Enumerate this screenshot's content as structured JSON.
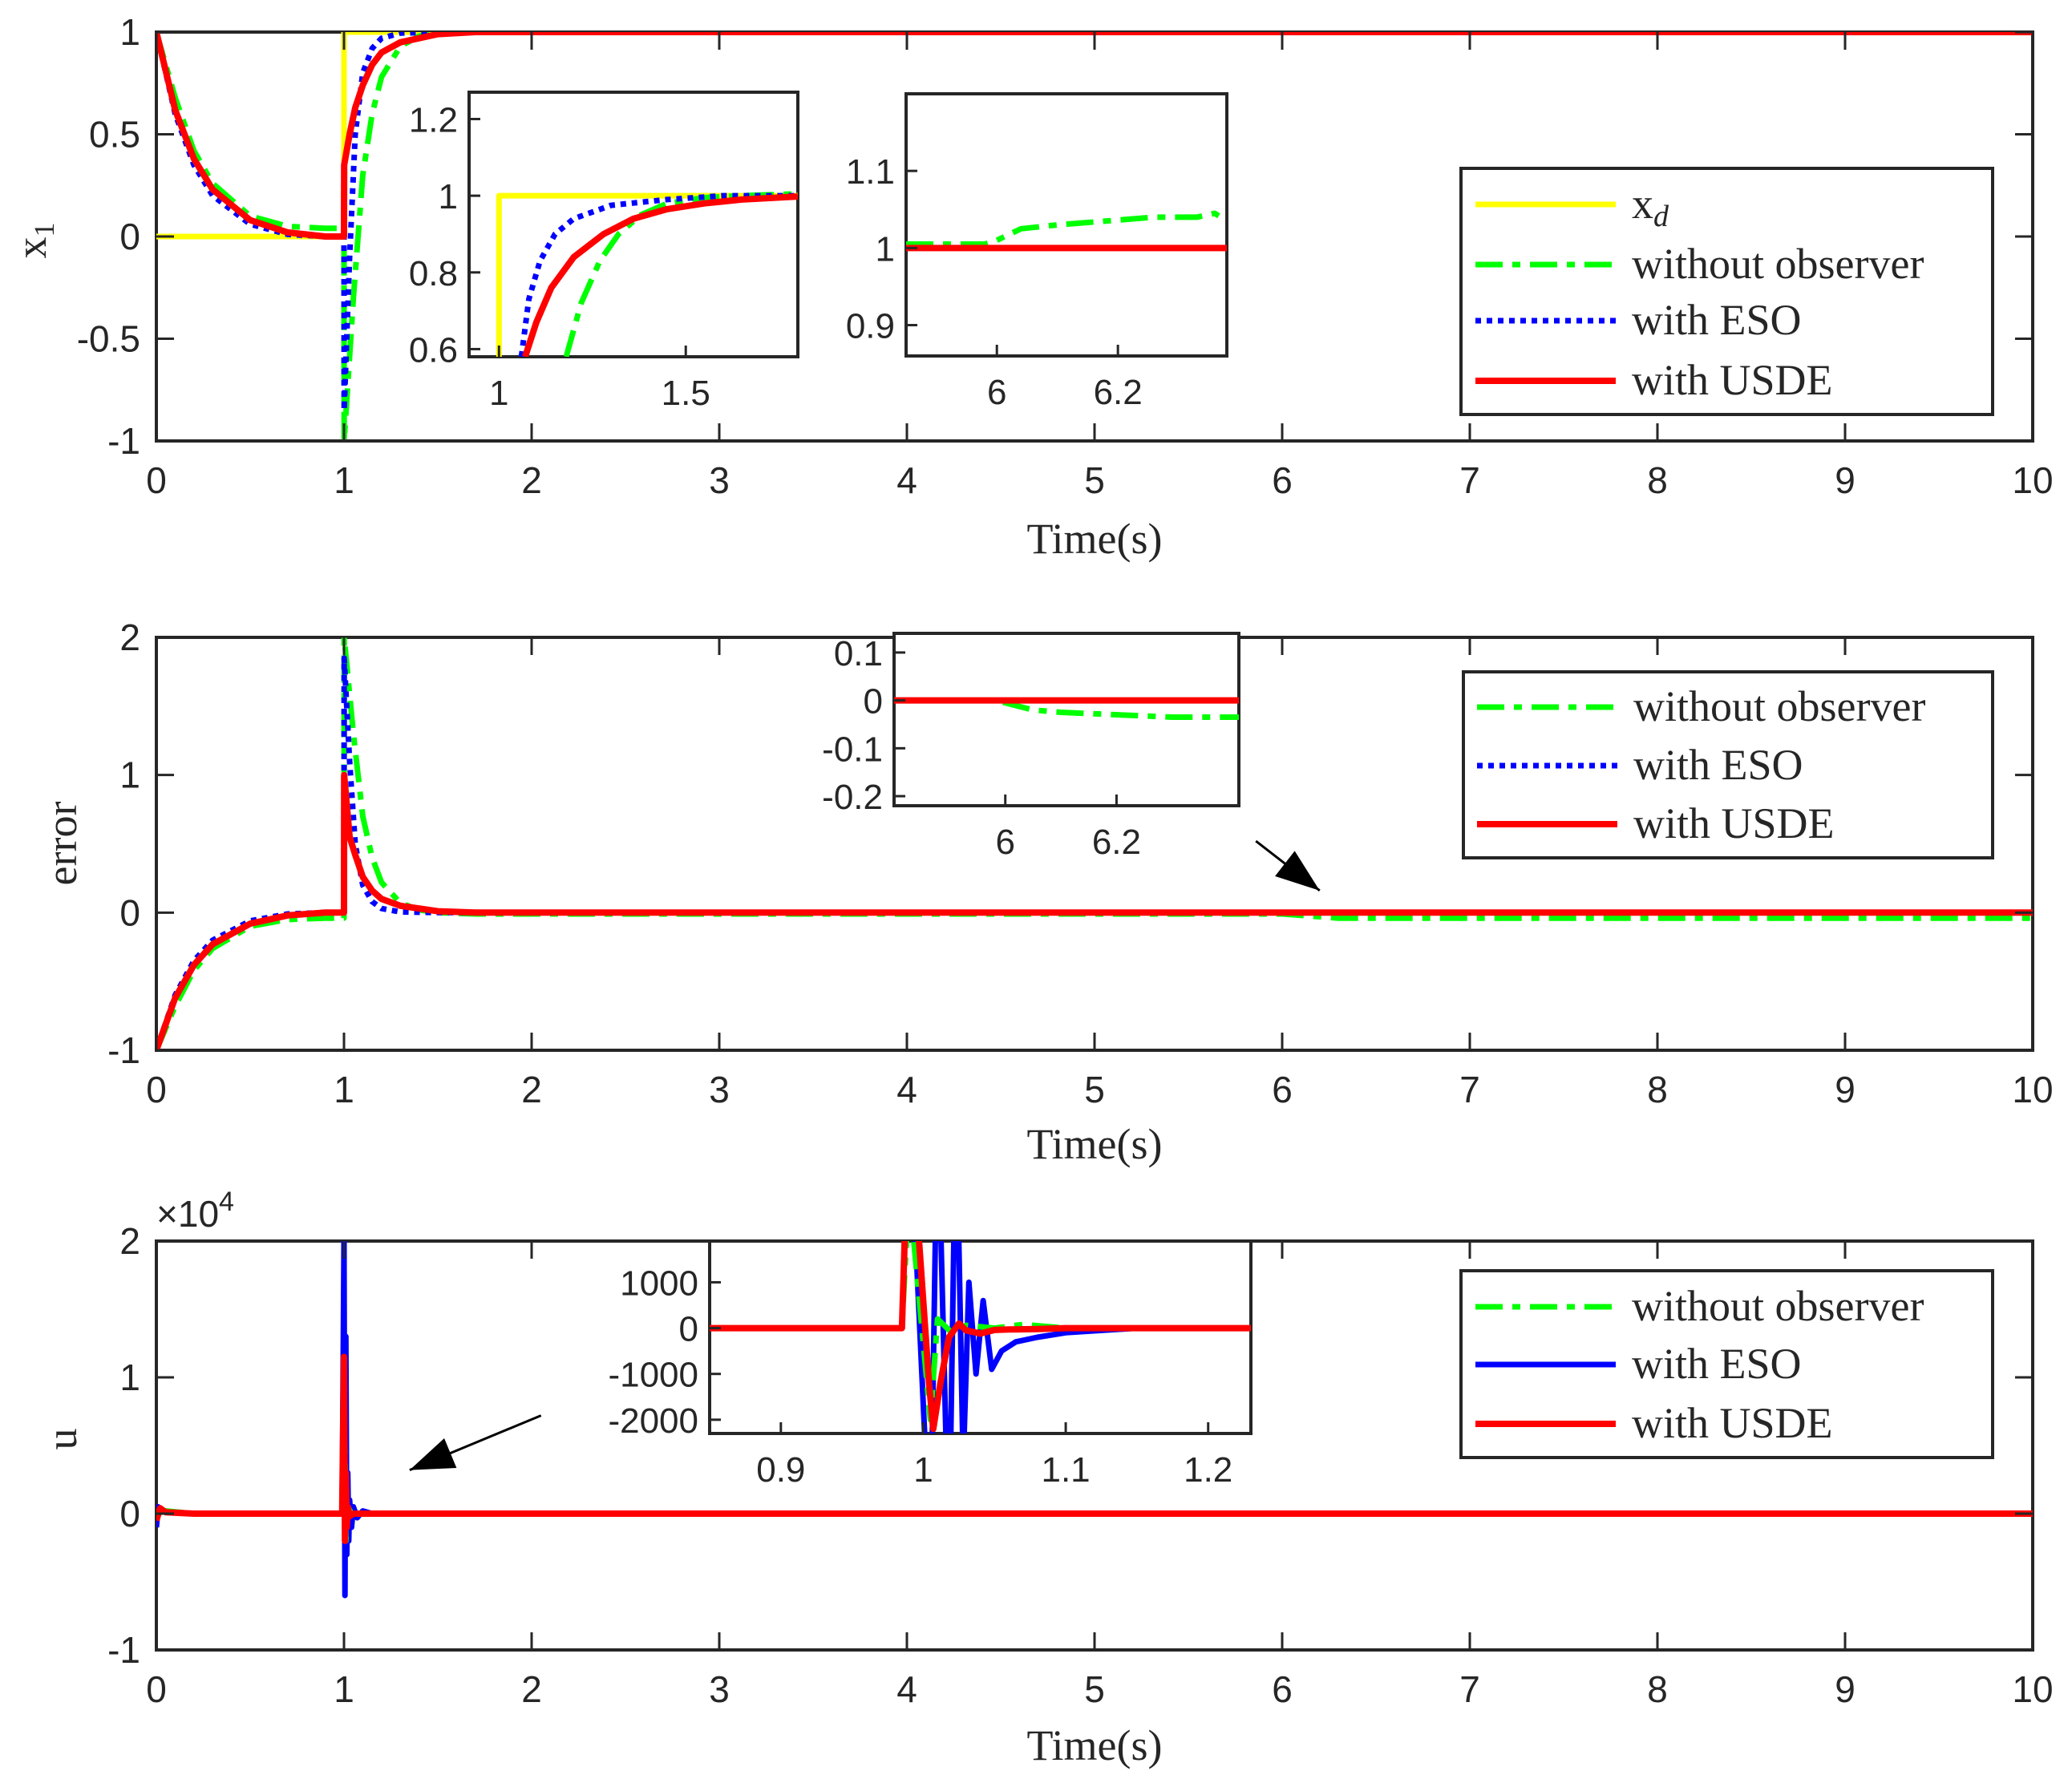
{
  "chart_data": [
    {
      "type": "line",
      "ylabel": "x",
      "ylabel_sub": "1",
      "xlabel": "Time(s)",
      "xlim": [
        0,
        10
      ],
      "ylim": [
        -1,
        1
      ],
      "xticks": [
        "0",
        "1",
        "2",
        "3",
        "4",
        "5",
        "6",
        "7",
        "8",
        "9",
        "10"
      ],
      "yticks": [
        "-1",
        "-0.5",
        "0",
        "0.5",
        "1"
      ],
      "legend": {
        "placement": "right",
        "items": [
          {
            "key": "xd",
            "label": "x",
            "sub": "d"
          },
          {
            "key": "without",
            "label": "without observer"
          },
          {
            "key": "eso",
            "label": "with ESO"
          },
          {
            "key": "usde",
            "label": "with USDE"
          }
        ]
      },
      "series": [
        {
          "name": "x_d",
          "key": "xd",
          "x": [
            0,
            1,
            1,
            10
          ],
          "y": [
            0,
            0,
            1,
            1
          ]
        },
        {
          "name": "without observer",
          "key": "without",
          "x": [
            0,
            0.1,
            0.2,
            0.3,
            0.5,
            0.7,
            0.9,
            1.0,
            1.001,
            1.05,
            1.1,
            1.15,
            1.2,
            1.3,
            1.4,
            1.5,
            1.7,
            2.0,
            3,
            6,
            6.3,
            10
          ],
          "y": [
            1,
            0.68,
            0.42,
            0.26,
            0.1,
            0.05,
            0.04,
            0.04,
            -1,
            -0.3,
            0.3,
            0.6,
            0.78,
            0.93,
            0.98,
            1,
            1.01,
            1.01,
            1.01,
            1.01,
            1.04,
            1.04
          ]
        },
        {
          "name": "with ESO",
          "key": "eso",
          "x": [
            0,
            0.1,
            0.2,
            0.3,
            0.5,
            0.7,
            0.9,
            1.0,
            1.001,
            1.03,
            1.06,
            1.1,
            1.15,
            1.2,
            1.3,
            1.5,
            2.0,
            10
          ],
          "y": [
            1,
            0.6,
            0.35,
            0.2,
            0.06,
            0.01,
            0,
            0,
            -0.85,
            -0.1,
            0.5,
            0.8,
            0.92,
            0.97,
            0.995,
            1,
            1,
            1
          ]
        },
        {
          "name": "with USDE",
          "key": "usde",
          "x": [
            0,
            0.1,
            0.2,
            0.3,
            0.5,
            0.7,
            0.9,
            1.0,
            1.001,
            1.03,
            1.06,
            1.1,
            1.15,
            1.2,
            1.3,
            1.5,
            1.7,
            2.0,
            10
          ],
          "y": [
            1,
            0.62,
            0.38,
            0.23,
            0.08,
            0.02,
            0,
            0,
            0.35,
            0.5,
            0.63,
            0.74,
            0.84,
            0.9,
            0.95,
            0.99,
            1,
            1,
            1
          ]
        }
      ],
      "insets": [
        {
          "xlim": [
            0.92,
            1.8
          ],
          "ylim": [
            0.58,
            1.27
          ],
          "xticks": [
            "1",
            "1.5"
          ],
          "yticks": [
            "0.6",
            "0.8",
            "1",
            "1.2"
          ],
          "series": [
            {
              "key": "xd",
              "x": [
                1,
                1,
                1.8
              ],
              "y": [
                0.58,
                1,
                1
              ]
            },
            {
              "key": "without",
              "x": [
                1.18,
                1.22,
                1.27,
                1.32,
                1.38,
                1.45,
                1.55,
                1.65,
                1.8
              ],
              "y": [
                0.58,
                0.72,
                0.83,
                0.9,
                0.95,
                0.98,
                0.995,
                1,
                1.005
              ]
            },
            {
              "key": "eso",
              "x": [
                1.06,
                1.08,
                1.11,
                1.15,
                1.2,
                1.3,
                1.45,
                1.6,
                1.8
              ],
              "y": [
                0.58,
                0.73,
                0.83,
                0.9,
                0.94,
                0.975,
                0.99,
                1,
                1
              ]
            },
            {
              "key": "usde",
              "x": [
                1.07,
                1.1,
                1.14,
                1.2,
                1.28,
                1.36,
                1.45,
                1.55,
                1.65,
                1.8
              ],
              "y": [
                0.58,
                0.67,
                0.76,
                0.84,
                0.9,
                0.94,
                0.965,
                0.98,
                0.99,
                0.998
              ]
            }
          ]
        },
        {
          "xlim": [
            5.85,
            6.38
          ],
          "ylim": [
            0.86,
            1.2
          ],
          "xticks": [
            "6",
            "6.2"
          ],
          "yticks": [
            "0.9",
            "1",
            "1.1"
          ],
          "series": [
            {
              "key": "without",
              "x": [
                5.85,
                5.98,
                6.0,
                6.04,
                6.1,
                6.18,
                6.26,
                6.33,
                6.36,
                6.38
              ],
              "y": [
                1.005,
                1.005,
                1.01,
                1.025,
                1.03,
                1.035,
                1.04,
                1.04,
                1.045,
                1.035
              ]
            },
            {
              "key": "usde",
              "x": [
                5.85,
                6.38
              ],
              "y": [
                1,
                1
              ]
            }
          ]
        }
      ]
    },
    {
      "type": "line",
      "ylabel": "error",
      "xlabel": "Time(s)",
      "xlim": [
        0,
        10
      ],
      "ylim": [
        -1,
        2
      ],
      "xticks": [
        "0",
        "1",
        "2",
        "3",
        "4",
        "5",
        "6",
        "7",
        "8",
        "9",
        "10"
      ],
      "yticks": [
        "-1",
        "0",
        "1",
        "2"
      ],
      "legend": {
        "placement": "right",
        "items": [
          {
            "key": "without",
            "label": "without observer"
          },
          {
            "key": "eso",
            "label": "with ESO"
          },
          {
            "key": "usde",
            "label": "with USDE"
          }
        ]
      },
      "series": [
        {
          "name": "without observer",
          "key": "without",
          "x": [
            0,
            0.1,
            0.2,
            0.3,
            0.5,
            0.7,
            0.9,
            1.0,
            1.001,
            1.05,
            1.1,
            1.15,
            1.2,
            1.3,
            1.4,
            1.5,
            1.7,
            2.0,
            3,
            6,
            6.3,
            10
          ],
          "y": [
            -1,
            -0.68,
            -0.42,
            -0.26,
            -0.1,
            -0.05,
            -0.04,
            -0.04,
            2,
            1.3,
            0.7,
            0.4,
            0.22,
            0.07,
            0.02,
            0,
            -0.01,
            -0.01,
            -0.01,
            -0.01,
            -0.04,
            -0.04
          ]
        },
        {
          "name": "with ESO",
          "key": "eso",
          "x": [
            0,
            0.1,
            0.2,
            0.3,
            0.5,
            0.7,
            0.9,
            1.0,
            1.001,
            1.03,
            1.06,
            1.1,
            1.15,
            1.2,
            1.3,
            1.5,
            2.0,
            10
          ],
          "y": [
            -1,
            -0.6,
            -0.35,
            -0.2,
            -0.06,
            -0.01,
            0,
            0,
            1.85,
            1.1,
            0.5,
            0.2,
            0.08,
            0.03,
            0.005,
            0,
            0,
            0
          ]
        },
        {
          "name": "with USDE",
          "key": "usde",
          "x": [
            0,
            0.1,
            0.2,
            0.3,
            0.5,
            0.7,
            0.9,
            1.0,
            1.001,
            1.03,
            1.06,
            1.1,
            1.15,
            1.2,
            1.3,
            1.5,
            1.7,
            2.0,
            10
          ],
          "y": [
            -1,
            -0.62,
            -0.38,
            -0.23,
            -0.08,
            -0.02,
            0,
            0,
            1.0,
            0.55,
            0.42,
            0.26,
            0.16,
            0.1,
            0.05,
            0.01,
            0,
            0,
            0
          ]
        }
      ],
      "annotations": [
        {
          "type": "arrow",
          "from": [
            5.86,
            0.52
          ],
          "to": [
            6.2,
            0.16
          ]
        }
      ],
      "insets": [
        {
          "xlim": [
            5.8,
            6.42
          ],
          "ylim": [
            -0.22,
            0.14
          ],
          "xticks": [
            "6",
            "6.2"
          ],
          "yticks": [
            "0.1",
            "0",
            "-0.1",
            "-0.2"
          ],
          "series": [
            {
              "key": "without",
              "x": [
                5.8,
                5.98,
                6.0,
                6.05,
                6.1,
                6.2,
                6.3,
                6.42
              ],
              "y": [
                0,
                0,
                -0.005,
                -0.02,
                -0.025,
                -0.03,
                -0.035,
                -0.035
              ]
            },
            {
              "key": "usde",
              "x": [
                5.8,
                6.42
              ],
              "y": [
                0,
                0
              ]
            }
          ]
        }
      ]
    },
    {
      "type": "line",
      "ylabel": "u",
      "xlabel": "Time(s)",
      "xlim": [
        0,
        10
      ],
      "ylim": [
        -1,
        2
      ],
      "multiplier": "×10",
      "multiplier_exp": "4",
      "xticks": [
        "0",
        "1",
        "2",
        "3",
        "4",
        "5",
        "6",
        "7",
        "8",
        "9",
        "10"
      ],
      "yticks": [
        "-1",
        "0",
        "1",
        "2"
      ],
      "legend": {
        "placement": "right",
        "items": [
          {
            "key": "without",
            "label": "without observer"
          },
          {
            "key": "eso_solid",
            "label": "with ESO"
          },
          {
            "key": "usde",
            "label": "with USDE"
          }
        ]
      },
      "series": [
        {
          "name": "with ESO",
          "key": "eso_solid",
          "x": [
            0,
            0.01,
            0.03,
            0.08,
            0.2,
            0.99,
            1.0,
            1.005,
            1.01,
            1.015,
            1.02,
            1.025,
            1.03,
            1.04,
            1.05,
            1.07,
            1.1,
            1.15,
            1.2,
            10
          ],
          "y": [
            -0.1,
            0.05,
            0.02,
            0.01,
            0,
            0,
            2.0,
            -0.6,
            1.3,
            -0.3,
            0.3,
            -0.2,
            0.1,
            -0.1,
            0.05,
            -0.03,
            0.02,
            0,
            0,
            0
          ]
        },
        {
          "name": "without observer",
          "key": "without",
          "x": [
            0,
            0.05,
            0.2,
            0.99,
            1.0,
            1.01,
            1.02,
            1.04,
            1.1,
            10
          ],
          "y": [
            0,
            0.02,
            0,
            0,
            1.1,
            -0.2,
            0.05,
            0,
            0,
            0
          ]
        },
        {
          "name": "with USDE",
          "key": "usde",
          "x": [
            0,
            0.02,
            0.05,
            0.2,
            0.99,
            1.0,
            1.005,
            1.01,
            1.015,
            1.02,
            1.03,
            1.05,
            1.1,
            10
          ],
          "y": [
            -0.05,
            0.04,
            0.01,
            0,
            0,
            1.15,
            -0.2,
            0.3,
            -0.1,
            0.05,
            -0.02,
            0,
            0,
            0
          ]
        }
      ],
      "annotations": [
        {
          "type": "arrow",
          "from": [
            2.05,
            0.72
          ],
          "to": [
            1.35,
            0.32
          ]
        }
      ],
      "insets": [
        {
          "xlim": [
            0.85,
            1.23
          ],
          "ylim": [
            -2300,
            1900
          ],
          "xticks": [
            "0.9",
            "1",
            "1.1",
            "1.2"
          ],
          "yticks": [
            "1000",
            "0",
            "-1000",
            "-2000"
          ],
          "series": [
            {
              "key": "eso_solid",
              "x": [
                0.85,
                0.985,
                0.99,
                1.005,
                1.01,
                1.018,
                1.023,
                1.028,
                1.032,
                1.037,
                1.042,
                1.048,
                1.055,
                1.065,
                1.08,
                1.1,
                1.15,
                1.23
              ],
              "y": [
                0,
                0,
                5000,
                -5000,
                5000,
                -5000,
                5000,
                -3000,
                1000,
                -1000,
                600,
                -900,
                -500,
                -300,
                -200,
                -100,
                0,
                0
              ]
            },
            {
              "key": "without",
              "x": [
                0.85,
                0.985,
                0.99,
                1.005,
                1.01,
                1.02,
                1.03,
                1.05,
                1.07,
                1.1,
                1.23
              ],
              "y": [
                0,
                0,
                3000,
                -2000,
                200,
                -100,
                60,
                0,
                80,
                0,
                0
              ]
            },
            {
              "key": "usde",
              "x": [
                0.85,
                0.985,
                0.99,
                1.004,
                1.007,
                1.012,
                1.018,
                1.025,
                1.03,
                1.04,
                1.05,
                1.06,
                1.08,
                1.1,
                1.15,
                1.23
              ],
              "y": [
                0,
                0,
                5000,
                -1200,
                -2200,
                -1200,
                -200,
                100,
                -50,
                -120,
                -40,
                -30,
                -20,
                0,
                0,
                0
              ]
            }
          ]
        }
      ]
    }
  ],
  "styles": {
    "xd": {
      "color": "#ffff00",
      "dash": "",
      "width": 7
    },
    "without": {
      "color": "#00ff00",
      "dash": "34,12,10,12",
      "width": 7
    },
    "eso": {
      "color": "#0000ff",
      "dash": "7,7",
      "width": 7
    },
    "eso_solid": {
      "color": "#0000ff",
      "dash": "",
      "width": 7
    },
    "usde": {
      "color": "#ff0000",
      "dash": "",
      "width": 8
    }
  }
}
